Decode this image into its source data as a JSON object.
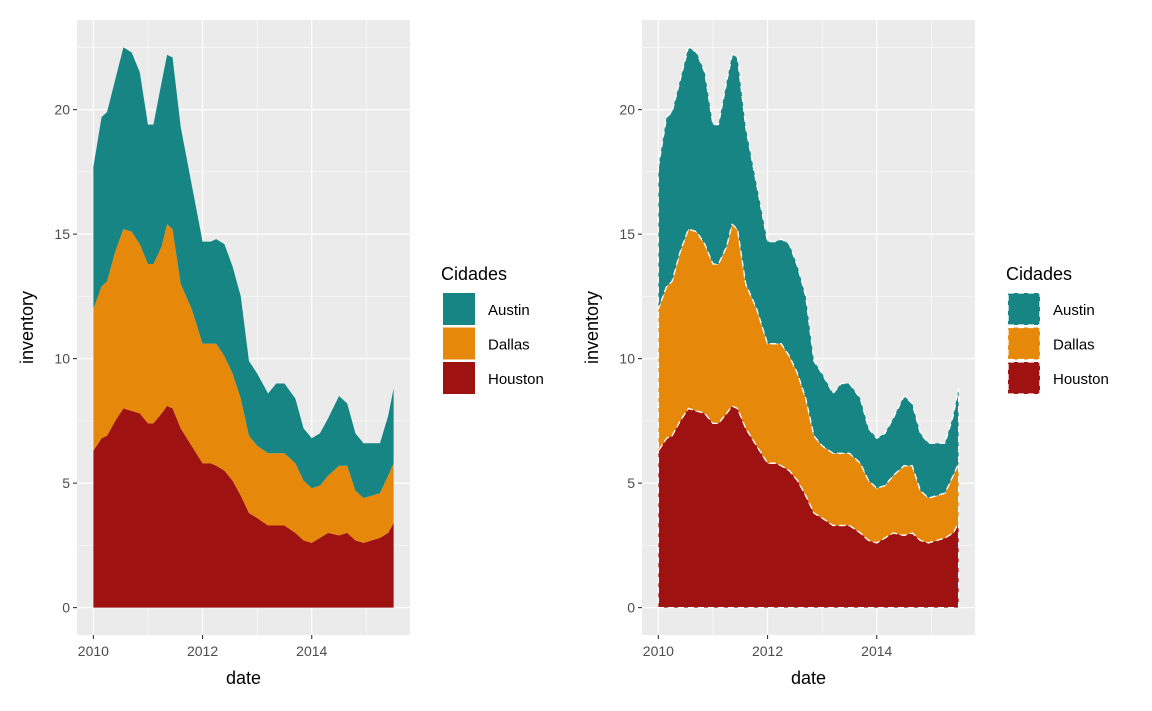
{
  "chart_data": [
    {
      "type": "area",
      "stacked": true,
      "outline": "none",
      "xlabel": "date",
      "ylabel": "inventory",
      "xlim": [
        2009.7,
        2015.8
      ],
      "ylim": [
        -1.1,
        23.6
      ],
      "x_ticks": [
        2010,
        2012,
        2014
      ],
      "x_tick_labels": [
        "2010",
        "2012",
        "2014"
      ],
      "y_ticks": [
        0,
        5,
        10,
        15,
        20
      ],
      "y_tick_labels": [
        "0",
        "5",
        "10",
        "15",
        "20"
      ],
      "grid": true,
      "legend": {
        "title": "Cidades",
        "position": "right"
      },
      "x": [
        2010.0,
        2010.15,
        2010.25,
        2010.4,
        2010.55,
        2010.7,
        2010.85,
        2011.0,
        2011.1,
        2011.25,
        2011.35,
        2011.45,
        2011.6,
        2011.8,
        2012.0,
        2012.15,
        2012.25,
        2012.4,
        2012.55,
        2012.7,
        2012.85,
        2013.0,
        2013.2,
        2013.35,
        2013.5,
        2013.7,
        2013.85,
        2014.0,
        2014.15,
        2014.3,
        2014.5,
        2014.65,
        2014.8,
        2014.95,
        2015.1,
        2015.25,
        2015.4,
        2015.5
      ],
      "series": [
        {
          "name": "Houston",
          "color": "#9e1211",
          "values": [
            6.3,
            6.8,
            6.9,
            7.5,
            8.0,
            7.9,
            7.8,
            7.4,
            7.4,
            7.8,
            8.1,
            8.0,
            7.2,
            6.5,
            5.8,
            5.8,
            5.7,
            5.5,
            5.1,
            4.5,
            3.8,
            3.6,
            3.3,
            3.3,
            3.3,
            3.0,
            2.7,
            2.6,
            2.8,
            3.0,
            2.9,
            3.0,
            2.7,
            2.6,
            2.7,
            2.8,
            3.0,
            3.4
          ]
        },
        {
          "name": "Dallas",
          "color": "#e6890b",
          "values": [
            5.7,
            6.1,
            6.2,
            6.8,
            7.2,
            7.2,
            6.8,
            6.4,
            6.4,
            6.7,
            7.3,
            7.2,
            5.8,
            5.5,
            4.8,
            4.8,
            4.9,
            4.6,
            4.3,
            3.9,
            3.1,
            2.9,
            2.9,
            2.9,
            2.9,
            2.8,
            2.4,
            2.2,
            2.1,
            2.3,
            2.8,
            2.7,
            2.0,
            1.8,
            1.8,
            1.8,
            2.3,
            2.4
          ]
        },
        {
          "name": "Austin",
          "color": "#178583",
          "values": [
            5.7,
            6.8,
            6.8,
            6.9,
            7.3,
            7.2,
            6.9,
            5.6,
            5.6,
            6.6,
            6.8,
            6.9,
            6.3,
            5.0,
            4.1,
            4.1,
            4.2,
            4.5,
            4.3,
            4.1,
            3.0,
            2.9,
            2.4,
            2.8,
            2.8,
            2.6,
            2.1,
            2.0,
            2.1,
            2.3,
            2.8,
            2.5,
            2.3,
            2.2,
            2.1,
            2.0,
            2.4,
            3.0
          ]
        }
      ]
    },
    {
      "type": "area",
      "stacked": true,
      "outline": "white dashed",
      "xlabel": "date",
      "ylabel": "inventory",
      "xlim": [
        2009.7,
        2015.8
      ],
      "ylim": [
        -1.1,
        23.6
      ],
      "x_ticks": [
        2010,
        2012,
        2014
      ],
      "x_tick_labels": [
        "2010",
        "2012",
        "2014"
      ],
      "y_ticks": [
        0,
        5,
        10,
        15,
        20
      ],
      "y_tick_labels": [
        "0",
        "5",
        "10",
        "15",
        "20"
      ],
      "grid": true,
      "legend": {
        "title": "Cidades",
        "position": "right"
      },
      "x": [
        2010.0,
        2010.15,
        2010.25,
        2010.4,
        2010.55,
        2010.7,
        2010.85,
        2011.0,
        2011.1,
        2011.25,
        2011.35,
        2011.45,
        2011.6,
        2011.8,
        2012.0,
        2012.15,
        2012.25,
        2012.4,
        2012.55,
        2012.7,
        2012.85,
        2013.0,
        2013.2,
        2013.35,
        2013.5,
        2013.7,
        2013.85,
        2014.0,
        2014.15,
        2014.3,
        2014.5,
        2014.65,
        2014.8,
        2014.95,
        2015.1,
        2015.25,
        2015.4,
        2015.5
      ],
      "series": [
        {
          "name": "Houston",
          "color": "#9e1211",
          "values": [
            6.3,
            6.8,
            6.9,
            7.5,
            8.0,
            7.9,
            7.8,
            7.4,
            7.4,
            7.8,
            8.1,
            8.0,
            7.2,
            6.5,
            5.8,
            5.8,
            5.7,
            5.5,
            5.1,
            4.5,
            3.8,
            3.6,
            3.3,
            3.3,
            3.3,
            3.0,
            2.7,
            2.6,
            2.8,
            3.0,
            2.9,
            3.0,
            2.7,
            2.6,
            2.7,
            2.8,
            3.0,
            3.4
          ]
        },
        {
          "name": "Dallas",
          "color": "#e6890b",
          "values": [
            5.7,
            6.1,
            6.2,
            6.8,
            7.2,
            7.2,
            6.8,
            6.4,
            6.4,
            6.7,
            7.3,
            7.2,
            5.8,
            5.5,
            4.8,
            4.8,
            4.9,
            4.6,
            4.3,
            3.9,
            3.1,
            2.9,
            2.9,
            2.9,
            2.9,
            2.8,
            2.4,
            2.2,
            2.1,
            2.3,
            2.8,
            2.7,
            2.0,
            1.8,
            1.8,
            1.8,
            2.3,
            2.4
          ]
        },
        {
          "name": "Austin",
          "color": "#178583",
          "values": [
            5.7,
            6.8,
            6.8,
            6.9,
            7.3,
            7.2,
            6.9,
            5.6,
            5.6,
            6.6,
            6.8,
            6.9,
            6.3,
            5.0,
            4.1,
            4.1,
            4.2,
            4.5,
            4.3,
            4.1,
            3.0,
            2.9,
            2.4,
            2.8,
            2.8,
            2.6,
            2.1,
            2.0,
            2.1,
            2.3,
            2.8,
            2.5,
            2.3,
            2.2,
            2.1,
            2.0,
            2.4,
            3.0
          ]
        }
      ]
    }
  ]
}
